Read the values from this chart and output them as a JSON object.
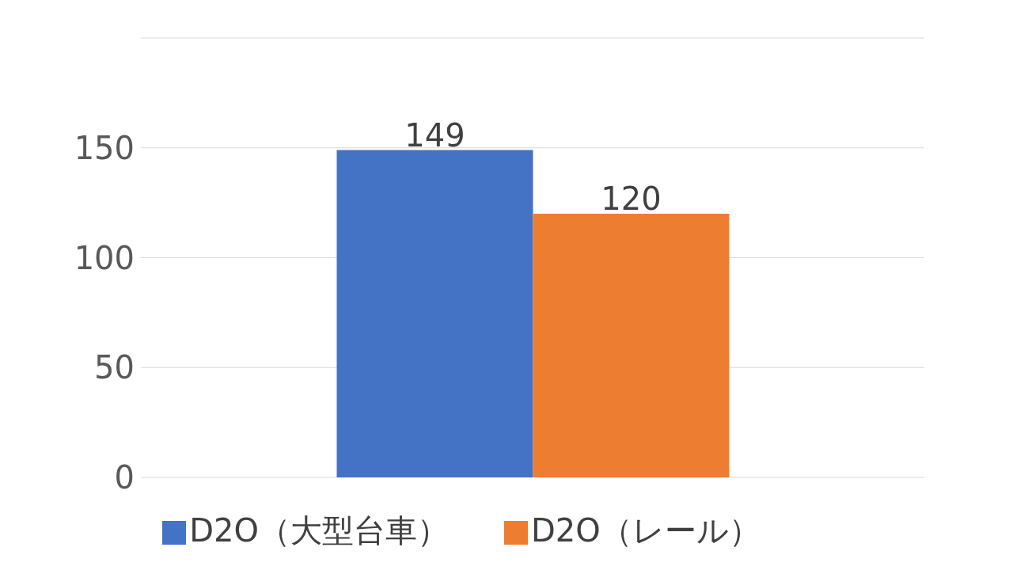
{
  "chart_data": {
    "type": "bar",
    "categories": [
      null
    ],
    "series": [
      {
        "name": "D2O（大型台車）",
        "color": "#4472c4",
        "values": [
          149
        ]
      },
      {
        "name": "D2O（レール）",
        "color": "#ed7d31",
        "values": [
          120
        ]
      }
    ],
    "ylim": [
      0,
      200
    ],
    "yticks": [
      0,
      50,
      100,
      150,
      {
        "value": 200,
        "label": null
      }
    ],
    "grid": "y",
    "legend": "bottom",
    "data_labels": true
  }
}
